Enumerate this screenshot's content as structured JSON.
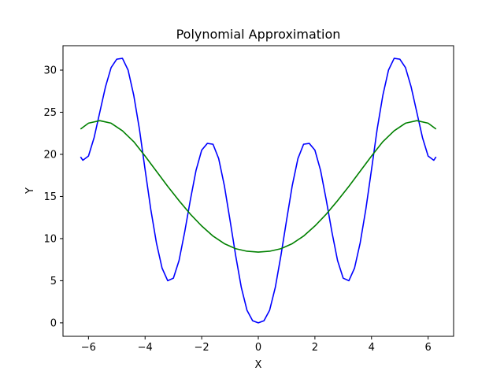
{
  "chart_data": {
    "type": "line",
    "title": "Polynomial Approximation",
    "xlabel": "X",
    "ylabel": "Y",
    "xlim": [
      -6.9,
      6.9
    ],
    "ylim": [
      -1.6,
      32.9
    ],
    "grid": false,
    "legend": "none",
    "x_ticks": [
      -6,
      -4,
      -2,
      0,
      2,
      4,
      6
    ],
    "x_tick_labels": [
      "−6",
      "−4",
      "−2",
      "0",
      "2",
      "4",
      "6"
    ],
    "y_ticks": [
      0,
      5,
      10,
      15,
      20,
      25,
      30
    ],
    "y_tick_labels": [
      "0",
      "5",
      "10",
      "15",
      "20",
      "25",
      "30"
    ],
    "series": [
      {
        "color": "#0000ff",
        "x": [
          -6.28,
          -6.2,
          -6.0,
          -5.8,
          -5.6,
          -5.4,
          -5.2,
          -5.0,
          -4.8,
          -4.6,
          -4.4,
          -4.2,
          -4.0,
          -3.8,
          -3.6,
          -3.4,
          -3.2,
          -3.0,
          -2.8,
          -2.6,
          -2.4,
          -2.2,
          -2.0,
          -1.8,
          -1.6,
          -1.4,
          -1.2,
          -1.0,
          -0.8,
          -0.6,
          -0.4,
          -0.2,
          0.0,
          0.2,
          0.4,
          0.6,
          0.8,
          1.0,
          1.2,
          1.4,
          1.6,
          1.8,
          2.0,
          2.2,
          2.4,
          2.6,
          2.8,
          3.0,
          3.2,
          3.4,
          3.6,
          3.8,
          4.0,
          4.2,
          4.4,
          4.6,
          4.8,
          5.0,
          5.2,
          5.4,
          5.6,
          5.8,
          6.0,
          6.2,
          6.28
        ],
        "y": [
          19.7,
          19.3,
          19.8,
          22.0,
          25.0,
          28.0,
          30.3,
          31.3,
          31.4,
          30.0,
          27.0,
          23.0,
          18.2,
          13.5,
          9.5,
          6.5,
          5.0,
          5.3,
          7.4,
          10.8,
          14.6,
          18.1,
          20.5,
          21.3,
          21.2,
          19.5,
          16.3,
          12.2,
          8.0,
          4.2,
          1.5,
          0.25,
          0.0,
          0.25,
          1.5,
          4.2,
          8.0,
          12.2,
          16.3,
          19.5,
          21.2,
          21.3,
          20.5,
          18.1,
          14.6,
          10.8,
          7.4,
          5.3,
          5.0,
          6.5,
          9.5,
          13.5,
          18.2,
          23.0,
          27.0,
          30.0,
          31.4,
          31.3,
          30.3,
          28.0,
          25.0,
          22.0,
          19.8,
          19.3,
          19.7
        ]
      },
      {
        "color": "#008000",
        "x": [
          -6.28,
          -6.0,
          -5.6,
          -5.2,
          -4.8,
          -4.4,
          -4.0,
          -3.6,
          -3.2,
          -2.8,
          -2.4,
          -2.0,
          -1.6,
          -1.2,
          -0.8,
          -0.4,
          0.0,
          0.4,
          0.8,
          1.2,
          1.6,
          2.0,
          2.4,
          2.8,
          3.2,
          3.6,
          4.0,
          4.4,
          4.8,
          5.2,
          5.6,
          6.0,
          6.28
        ],
        "y": [
          23.0,
          23.7,
          24.0,
          23.7,
          22.8,
          21.5,
          19.8,
          18.0,
          16.2,
          14.5,
          12.9,
          11.5,
          10.3,
          9.4,
          8.8,
          8.5,
          8.4,
          8.5,
          8.8,
          9.4,
          10.3,
          11.5,
          12.9,
          14.5,
          16.2,
          18.0,
          19.8,
          21.5,
          22.8,
          23.7,
          24.0,
          23.7,
          23.0
        ]
      }
    ]
  }
}
